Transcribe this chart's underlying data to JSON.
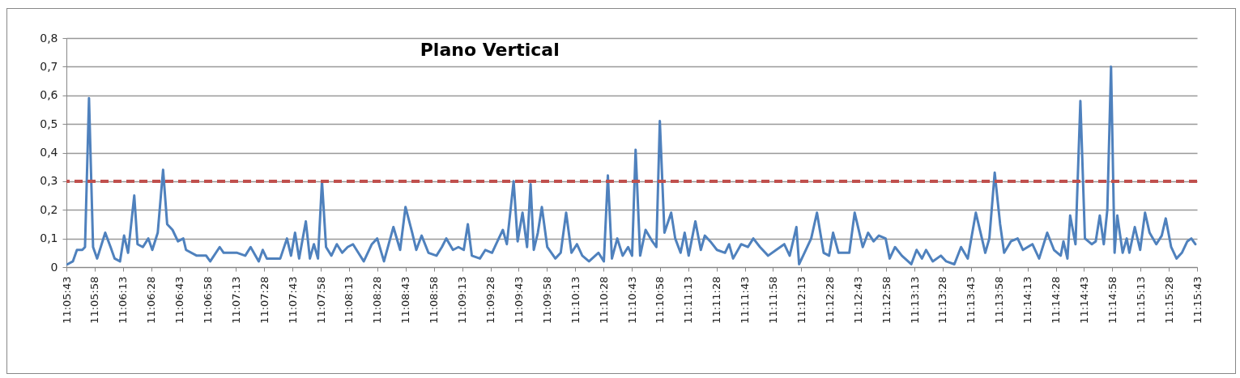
{
  "chart_data": {
    "type": "line",
    "title": "Plano Vertical",
    "grid": "y",
    "marker": "none",
    "line_style": "solid",
    "xlim": [
      11.09528,
      11.26194
    ],
    "xticks": [
      {
        "value": 11.09528,
        "label": "11:05:43"
      },
      {
        "value": 11.09944,
        "label": "11:05:58"
      },
      {
        "value": 11.10361,
        "label": "11:06:13"
      },
      {
        "value": 11.10778,
        "label": "11:06:28"
      },
      {
        "value": 11.11194,
        "label": "11:06:43"
      },
      {
        "value": 11.11611,
        "label": "11:06:58"
      },
      {
        "value": 11.12028,
        "label": "11:07:13"
      },
      {
        "value": 11.12444,
        "label": "11:07:28"
      },
      {
        "value": 11.12861,
        "label": "11:07:43"
      },
      {
        "value": 11.13278,
        "label": "11:07:58"
      },
      {
        "value": 11.13694,
        "label": "11:08:13"
      },
      {
        "value": 11.14111,
        "label": "11:08:28"
      },
      {
        "value": 11.14528,
        "label": "11:08:43"
      },
      {
        "value": 11.14944,
        "label": "11:08:58"
      },
      {
        "value": 11.15361,
        "label": "11:09:13"
      },
      {
        "value": 11.15778,
        "label": "11:09:28"
      },
      {
        "value": 11.16194,
        "label": "11:09:43"
      },
      {
        "value": 11.16611,
        "label": "11:09:58"
      },
      {
        "value": 11.17028,
        "label": "11:10:13"
      },
      {
        "value": 11.17444,
        "label": "11:10:28"
      },
      {
        "value": 11.17861,
        "label": "11:10:43"
      },
      {
        "value": 11.18278,
        "label": "11:10:58"
      },
      {
        "value": 11.18694,
        "label": "11:11:13"
      },
      {
        "value": 11.19111,
        "label": "11:11:28"
      },
      {
        "value": 11.19528,
        "label": "11:11:43"
      },
      {
        "value": 11.19944,
        "label": "11:11:58"
      },
      {
        "value": 11.20361,
        "label": "11:12:13"
      },
      {
        "value": 11.20778,
        "label": "11:12:28"
      },
      {
        "value": 11.21194,
        "label": "11:12:43"
      },
      {
        "value": 11.21611,
        "label": "11:12:58"
      },
      {
        "value": 11.22028,
        "label": "11:13:13"
      },
      {
        "value": 11.22444,
        "label": "11:13:28"
      },
      {
        "value": 11.22861,
        "label": "11:13:43"
      },
      {
        "value": 11.23278,
        "label": "11:13:58"
      },
      {
        "value": 11.23694,
        "label": "11:14:13"
      },
      {
        "value": 11.24111,
        "label": "11:14:28"
      },
      {
        "value": 11.24528,
        "label": "11:14:43"
      },
      {
        "value": 11.24944,
        "label": "11:14:58"
      },
      {
        "value": 11.25361,
        "label": "11:15:13"
      },
      {
        "value": 11.25778,
        "label": "11:15:28"
      },
      {
        "value": 11.26194,
        "label": "11:15:43"
      }
    ],
    "ylim": [
      0,
      0.8
    ],
    "yticks": [
      0,
      {
        "value": 0.1,
        "label": "0,1"
      },
      {
        "value": 0.2,
        "label": "0,2"
      },
      {
        "value": 0.3,
        "label": "0,3"
      },
      {
        "value": 0.4,
        "label": "0,4"
      },
      {
        "value": 0.5,
        "label": "0,5"
      },
      {
        "value": 0.6,
        "label": "0,6"
      },
      {
        "value": 0.7,
        "label": "0,7"
      },
      {
        "value": 0.8,
        "label": "0,8"
      }
    ],
    "ref_lines": [
      {
        "axis": "y",
        "value": 0.3,
        "color": "#c0504d",
        "line_style": "dashed"
      }
    ],
    "series": [
      {
        "color": "#4f81bd",
        "x": [
          11.09544,
          11.09623,
          11.09683,
          11.09762,
          11.09802,
          11.09861,
          11.09921,
          11.09981,
          11.101,
          11.10179,
          11.10239,
          11.10318,
          11.10378,
          11.10437,
          11.10528,
          11.10576,
          11.10655,
          11.10735,
          11.10794,
          11.10874,
          11.10953,
          11.11013,
          11.11092,
          11.11172,
          11.11251,
          11.11291,
          11.11449,
          11.11588,
          11.11648,
          11.11787,
          11.11846,
          11.11966,
          11.12045,
          11.12164,
          11.12243,
          11.12363,
          11.12422,
          11.12482,
          11.1268,
          11.12779,
          11.12839,
          11.12898,
          11.12958,
          11.13057,
          11.13117,
          11.13176,
          11.13236,
          11.13295,
          11.13355,
          11.13434,
          11.13514,
          11.13593,
          11.13673,
          11.13752,
          11.13831,
          11.13911,
          11.1403,
          11.14109,
          11.14209,
          11.14348,
          11.14447,
          11.14526,
          11.14625,
          11.14685,
          11.14764,
          11.14864,
          11.14983,
          11.15062,
          11.15127,
          11.15226,
          11.15306,
          11.15385,
          11.15445,
          11.15504,
          11.15623,
          11.15703,
          11.15802,
          11.15881,
          11.15961,
          11.1602,
          11.1612,
          11.16179,
          11.16251,
          11.16318,
          11.1637,
          11.16417,
          11.16477,
          11.16536,
          11.16616,
          11.16735,
          11.16814,
          11.16894,
          11.16973,
          11.17053,
          11.17132,
          11.17231,
          11.1737,
          11.1745,
          11.17509,
          11.17569,
          11.17648,
          11.17727,
          11.17807,
          11.17866,
          11.17918,
          11.17985,
          11.18065,
          11.18164,
          11.18224,
          11.18275,
          11.18343,
          11.18442,
          11.18502,
          11.18581,
          11.18641,
          11.187,
          11.18799,
          11.18879,
          11.18938,
          11.19018,
          11.19117,
          11.19236,
          11.19296,
          11.19355,
          11.19474,
          11.19573,
          11.19653,
          11.19752,
          11.19871,
          11.1999,
          11.20109,
          11.20189,
          11.20288,
          11.20328,
          11.20407,
          11.20506,
          11.20591,
          11.2069,
          11.2077,
          11.20829,
          11.20909,
          11.21068,
          11.21147,
          11.21266,
          11.21345,
          11.21425,
          11.21504,
          11.21603,
          11.21663,
          11.21742,
          11.21842,
          11.21981,
          11.2206,
          11.22139,
          11.22199,
          11.22298,
          11.22417,
          11.22497,
          11.22616,
          11.22715,
          11.22814,
          11.22933,
          11.23013,
          11.23072,
          11.23132,
          11.23211,
          11.23291,
          11.2335,
          11.2345,
          11.23549,
          11.23628,
          11.23767,
          11.23866,
          11.23985,
          11.24085,
          11.24184,
          11.24224,
          11.24283,
          11.24323,
          11.24402,
          11.24474,
          11.24541,
          11.24641,
          11.247,
          11.2476,
          11.24819,
          11.24871,
          11.24926,
          11.24978,
          11.25018,
          11.25097,
          11.25157,
          11.25196,
          11.25276,
          11.25355,
          11.25427,
          11.25494,
          11.25593,
          11.25673,
          11.25732,
          11.25812,
          11.25891,
          11.2597,
          11.2605,
          11.26109,
          11.26169
        ],
        "values": [
          0.01,
          0.02,
          0.06,
          0.06,
          0.07,
          0.59,
          0.07,
          0.03,
          0.12,
          0.07,
          0.03,
          0.02,
          0.11,
          0.05,
          0.25,
          0.08,
          0.07,
          0.1,
          0.06,
          0.12,
          0.34,
          0.15,
          0.13,
          0.09,
          0.1,
          0.06,
          0.04,
          0.04,
          0.02,
          0.07,
          0.05,
          0.05,
          0.05,
          0.04,
          0.07,
          0.02,
          0.06,
          0.03,
          0.03,
          0.1,
          0.04,
          0.12,
          0.03,
          0.16,
          0.03,
          0.08,
          0.03,
          0.3,
          0.07,
          0.04,
          0.08,
          0.05,
          0.07,
          0.08,
          0.05,
          0.02,
          0.08,
          0.1,
          0.02,
          0.14,
          0.06,
          0.21,
          0.12,
          0.06,
          0.11,
          0.05,
          0.04,
          0.07,
          0.1,
          0.06,
          0.07,
          0.06,
          0.15,
          0.04,
          0.03,
          0.06,
          0.05,
          0.09,
          0.13,
          0.08,
          0.3,
          0.09,
          0.19,
          0.07,
          0.29,
          0.06,
          0.12,
          0.21,
          0.07,
          0.03,
          0.05,
          0.19,
          0.05,
          0.08,
          0.04,
          0.02,
          0.05,
          0.02,
          0.32,
          0.03,
          0.1,
          0.04,
          0.07,
          0.04,
          0.41,
          0.04,
          0.13,
          0.09,
          0.07,
          0.51,
          0.12,
          0.19,
          0.1,
          0.05,
          0.12,
          0.04,
          0.16,
          0.06,
          0.11,
          0.09,
          0.06,
          0.05,
          0.08,
          0.03,
          0.08,
          0.07,
          0.1,
          0.07,
          0.04,
          0.06,
          0.08,
          0.04,
          0.14,
          0.01,
          0.05,
          0.1,
          0.19,
          0.05,
          0.04,
          0.12,
          0.05,
          0.05,
          0.19,
          0.07,
          0.12,
          0.09,
          0.11,
          0.1,
          0.03,
          0.07,
          0.04,
          0.01,
          0.06,
          0.03,
          0.06,
          0.02,
          0.04,
          0.02,
          0.01,
          0.07,
          0.03,
          0.19,
          0.11,
          0.05,
          0.1,
          0.33,
          0.15,
          0.05,
          0.09,
          0.1,
          0.06,
          0.08,
          0.03,
          0.12,
          0.06,
          0.04,
          0.09,
          0.03,
          0.18,
          0.08,
          0.58,
          0.1,
          0.08,
          0.09,
          0.18,
          0.08,
          0.2,
          0.7,
          0.05,
          0.18,
          0.05,
          0.1,
          0.05,
          0.14,
          0.06,
          0.19,
          0.12,
          0.08,
          0.11,
          0.17,
          0.07,
          0.03,
          0.05,
          0.09,
          0.1,
          0.08
        ]
      }
    ]
  }
}
